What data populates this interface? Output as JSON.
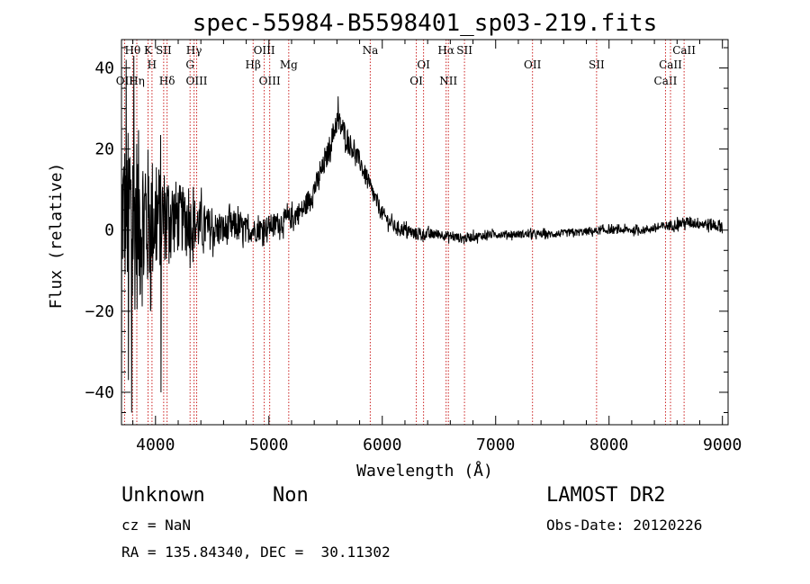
{
  "chart_data": {
    "type": "line",
    "title": "spec-55984-B5598401_sp03-219.fits",
    "xlabel": "Wavelength (Å)",
    "ylabel": "Flux (relative)",
    "xlim": [
      3700,
      9050
    ],
    "ylim": [
      -48,
      47
    ],
    "xticks": [
      4000,
      5000,
      6000,
      7000,
      8000,
      9000
    ],
    "xtick_labels": [
      "4000",
      "5000",
      "6000",
      "7000",
      "8000",
      "9000"
    ],
    "yticks": [
      -40,
      -20,
      0,
      20,
      40
    ],
    "ytick_labels": [
      "−40",
      "−20",
      "0",
      "20",
      "40"
    ],
    "line_color": "#000000",
    "marker_color": "#cc2222",
    "spectrum_profile": [
      [
        3700,
        5,
        22
      ],
      [
        3800,
        3,
        30
      ],
      [
        3900,
        2,
        26
      ],
      [
        4000,
        3,
        18
      ],
      [
        4100,
        4,
        14
      ],
      [
        4200,
        3,
        11
      ],
      [
        4300,
        2,
        9
      ],
      [
        4400,
        1,
        8
      ],
      [
        4500,
        0,
        6
      ],
      [
        4600,
        0,
        5
      ],
      [
        4700,
        1,
        5
      ],
      [
        4800,
        0,
        4
      ],
      [
        4900,
        0,
        3.5
      ],
      [
        5000,
        1,
        3.5
      ],
      [
        5100,
        2,
        3.5
      ],
      [
        5200,
        3,
        3.5
      ],
      [
        5300,
        5,
        3.5
      ],
      [
        5400,
        10,
        3.5
      ],
      [
        5500,
        17,
        3.5
      ],
      [
        5600,
        27,
        4
      ],
      [
        5650,
        25,
        4
      ],
      [
        5700,
        22,
        3.5
      ],
      [
        5800,
        17,
        3
      ],
      [
        5900,
        10,
        3
      ],
      [
        6000,
        4,
        2.5
      ],
      [
        6100,
        1,
        2
      ],
      [
        6300,
        -1,
        2
      ],
      [
        6500,
        -1,
        1.5
      ],
      [
        6700,
        -2,
        1.5
      ],
      [
        7000,
        -1,
        1.2
      ],
      [
        7500,
        -1,
        1.2
      ],
      [
        8000,
        0,
        1.2
      ],
      [
        8300,
        0,
        1.2
      ],
      [
        8500,
        1,
        1.5
      ],
      [
        8700,
        2,
        1.8
      ],
      [
        9000,
        1,
        2
      ]
    ],
    "spikes": [
      [
        3760,
        -37
      ],
      [
        3790,
        -45
      ],
      [
        3700,
        -45
      ],
      [
        3810,
        43
      ],
      [
        4050,
        -40
      ],
      [
        5610,
        33
      ],
      [
        3740,
        42
      ]
    ],
    "lines": [
      {
        "label": "OII",
        "wavelength": 3727,
        "row": 2
      },
      {
        "label": "Hθ",
        "wavelength": 3798,
        "row": 0
      },
      {
        "label": "Hη",
        "wavelength": 3835,
        "row": 2
      },
      {
        "label": "K",
        "wavelength": 3934,
        "row": 0
      },
      {
        "label": "H",
        "wavelength": 3969,
        "row": 1
      },
      {
        "label": "SII",
        "wavelength": 4072,
        "row": 0
      },
      {
        "label": "Hδ",
        "wavelength": 4102,
        "row": 2
      },
      {
        "label": "Hγ",
        "wavelength": 4340,
        "row": 0
      },
      {
        "label": "G",
        "wavelength": 4305,
        "row": 1
      },
      {
        "label": "OIII",
        "wavelength": 4363,
        "row": 2
      },
      {
        "label": "Hβ",
        "wavelength": 4861,
        "row": 1
      },
      {
        "label": "OIII",
        "wavelength": 4959,
        "row": 0
      },
      {
        "label": "OIII",
        "wavelength": 5007,
        "row": 2
      },
      {
        "label": "Mg",
        "wavelength": 5175,
        "row": 1
      },
      {
        "label": "Na",
        "wavelength": 5894,
        "row": 0
      },
      {
        "label": "OI",
        "wavelength": 6300,
        "row": 2
      },
      {
        "label": "OI",
        "wavelength": 6364,
        "row": 1
      },
      {
        "label": "Hα",
        "wavelength": 6563,
        "row": 0
      },
      {
        "label": "NII",
        "wavelength": 6583,
        "row": 2
      },
      {
        "label": "SII",
        "wavelength": 6725,
        "row": 0
      },
      {
        "label": "OII",
        "wavelength": 7325,
        "row": 1
      },
      {
        "label": "SII",
        "wavelength": 7890,
        "row": 1
      },
      {
        "label": "CaII",
        "wavelength": 8498,
        "row": 2
      },
      {
        "label": "CaII",
        "wavelength": 8542,
        "row": 1
      },
      {
        "label": "CaII",
        "wavelength": 8662,
        "row": 0
      }
    ]
  },
  "info": {
    "object_class": "Unknown",
    "subclass": "Non",
    "survey": "LAMOST DR2",
    "cz": "cz = NaN",
    "obs_date": "Obs-Date: 20120226",
    "radec": "RA = 135.84340, DEC =  30.11302"
  }
}
